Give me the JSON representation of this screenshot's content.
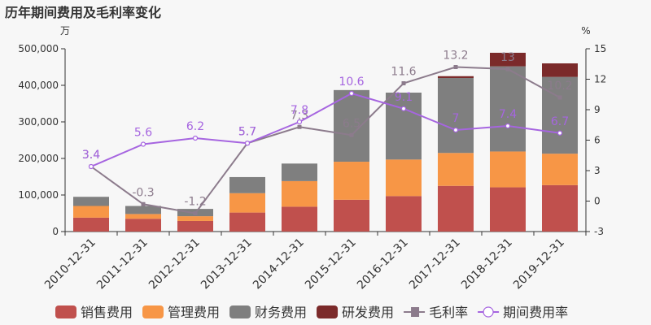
{
  "chart_data": {
    "type": "bar",
    "title": "历年期间费用及毛利率变化",
    "left_unit": "万",
    "right_unit": "%",
    "categories": [
      "2010-12-31",
      "2011-12-31",
      "2012-12-31",
      "2013-12-31",
      "2014-12-31",
      "2015-12-31",
      "2016-12-31",
      "2017-12-31",
      "2018-12-31",
      "2019-12-31"
    ],
    "left_axis": {
      "min": 0,
      "max": 500000,
      "ticks": [
        "0",
        "100,000",
        "200,000",
        "300,000",
        "400,000",
        "500,000"
      ]
    },
    "right_axis": {
      "min": -3,
      "max": 15,
      "ticks": [
        "-3",
        "0",
        "3",
        "6",
        "9",
        "12",
        "15"
      ]
    },
    "series": [
      {
        "name": "销售费用",
        "kind": "bar",
        "color": "#c0504d",
        "values": [
          38000,
          35000,
          29000,
          52000,
          68000,
          87000,
          97000,
          125000,
          121000,
          127000
        ]
      },
      {
        "name": "管理费用",
        "kind": "bar",
        "color": "#f79646",
        "values": [
          32000,
          13000,
          13000,
          53000,
          70000,
          104000,
          100000,
          90000,
          98000,
          86000
        ]
      },
      {
        "name": "财务费用",
        "kind": "bar",
        "color": "#7f7f7f",
        "values": [
          25000,
          22000,
          20000,
          44000,
          48000,
          196000,
          183000,
          205000,
          233000,
          210000
        ]
      },
      {
        "name": "研发费用",
        "kind": "bar",
        "color": "#7b2a2a",
        "values": [
          0,
          0,
          0,
          0,
          0,
          0,
          0,
          5000,
          37000,
          37000
        ]
      },
      {
        "name": "毛利率",
        "kind": "line",
        "color": "#8c7b8c",
        "values": [
          3.4,
          -0.3,
          -1.2,
          5.7,
          7.3,
          6.5,
          11.6,
          13.2,
          13.0,
          10.2
        ],
        "labels": [
          "3.4",
          "-0.3",
          "-1.2",
          "5.7",
          "7.3",
          "6.5",
          "11.6",
          "13.2",
          "13",
          "10.2"
        ]
      },
      {
        "name": "期间费用率",
        "kind": "line",
        "color": "#a665e0",
        "values": [
          3.4,
          5.6,
          6.2,
          5.7,
          7.8,
          10.6,
          9.1,
          7.0,
          7.4,
          6.7
        ],
        "labels": [
          "3.4",
          "5.6",
          "6.2",
          "5.7",
          "7.8",
          "10.6",
          "9.1",
          "7",
          "7.4",
          "6.7"
        ]
      }
    ],
    "legend_position": "bottom",
    "grid": false
  }
}
